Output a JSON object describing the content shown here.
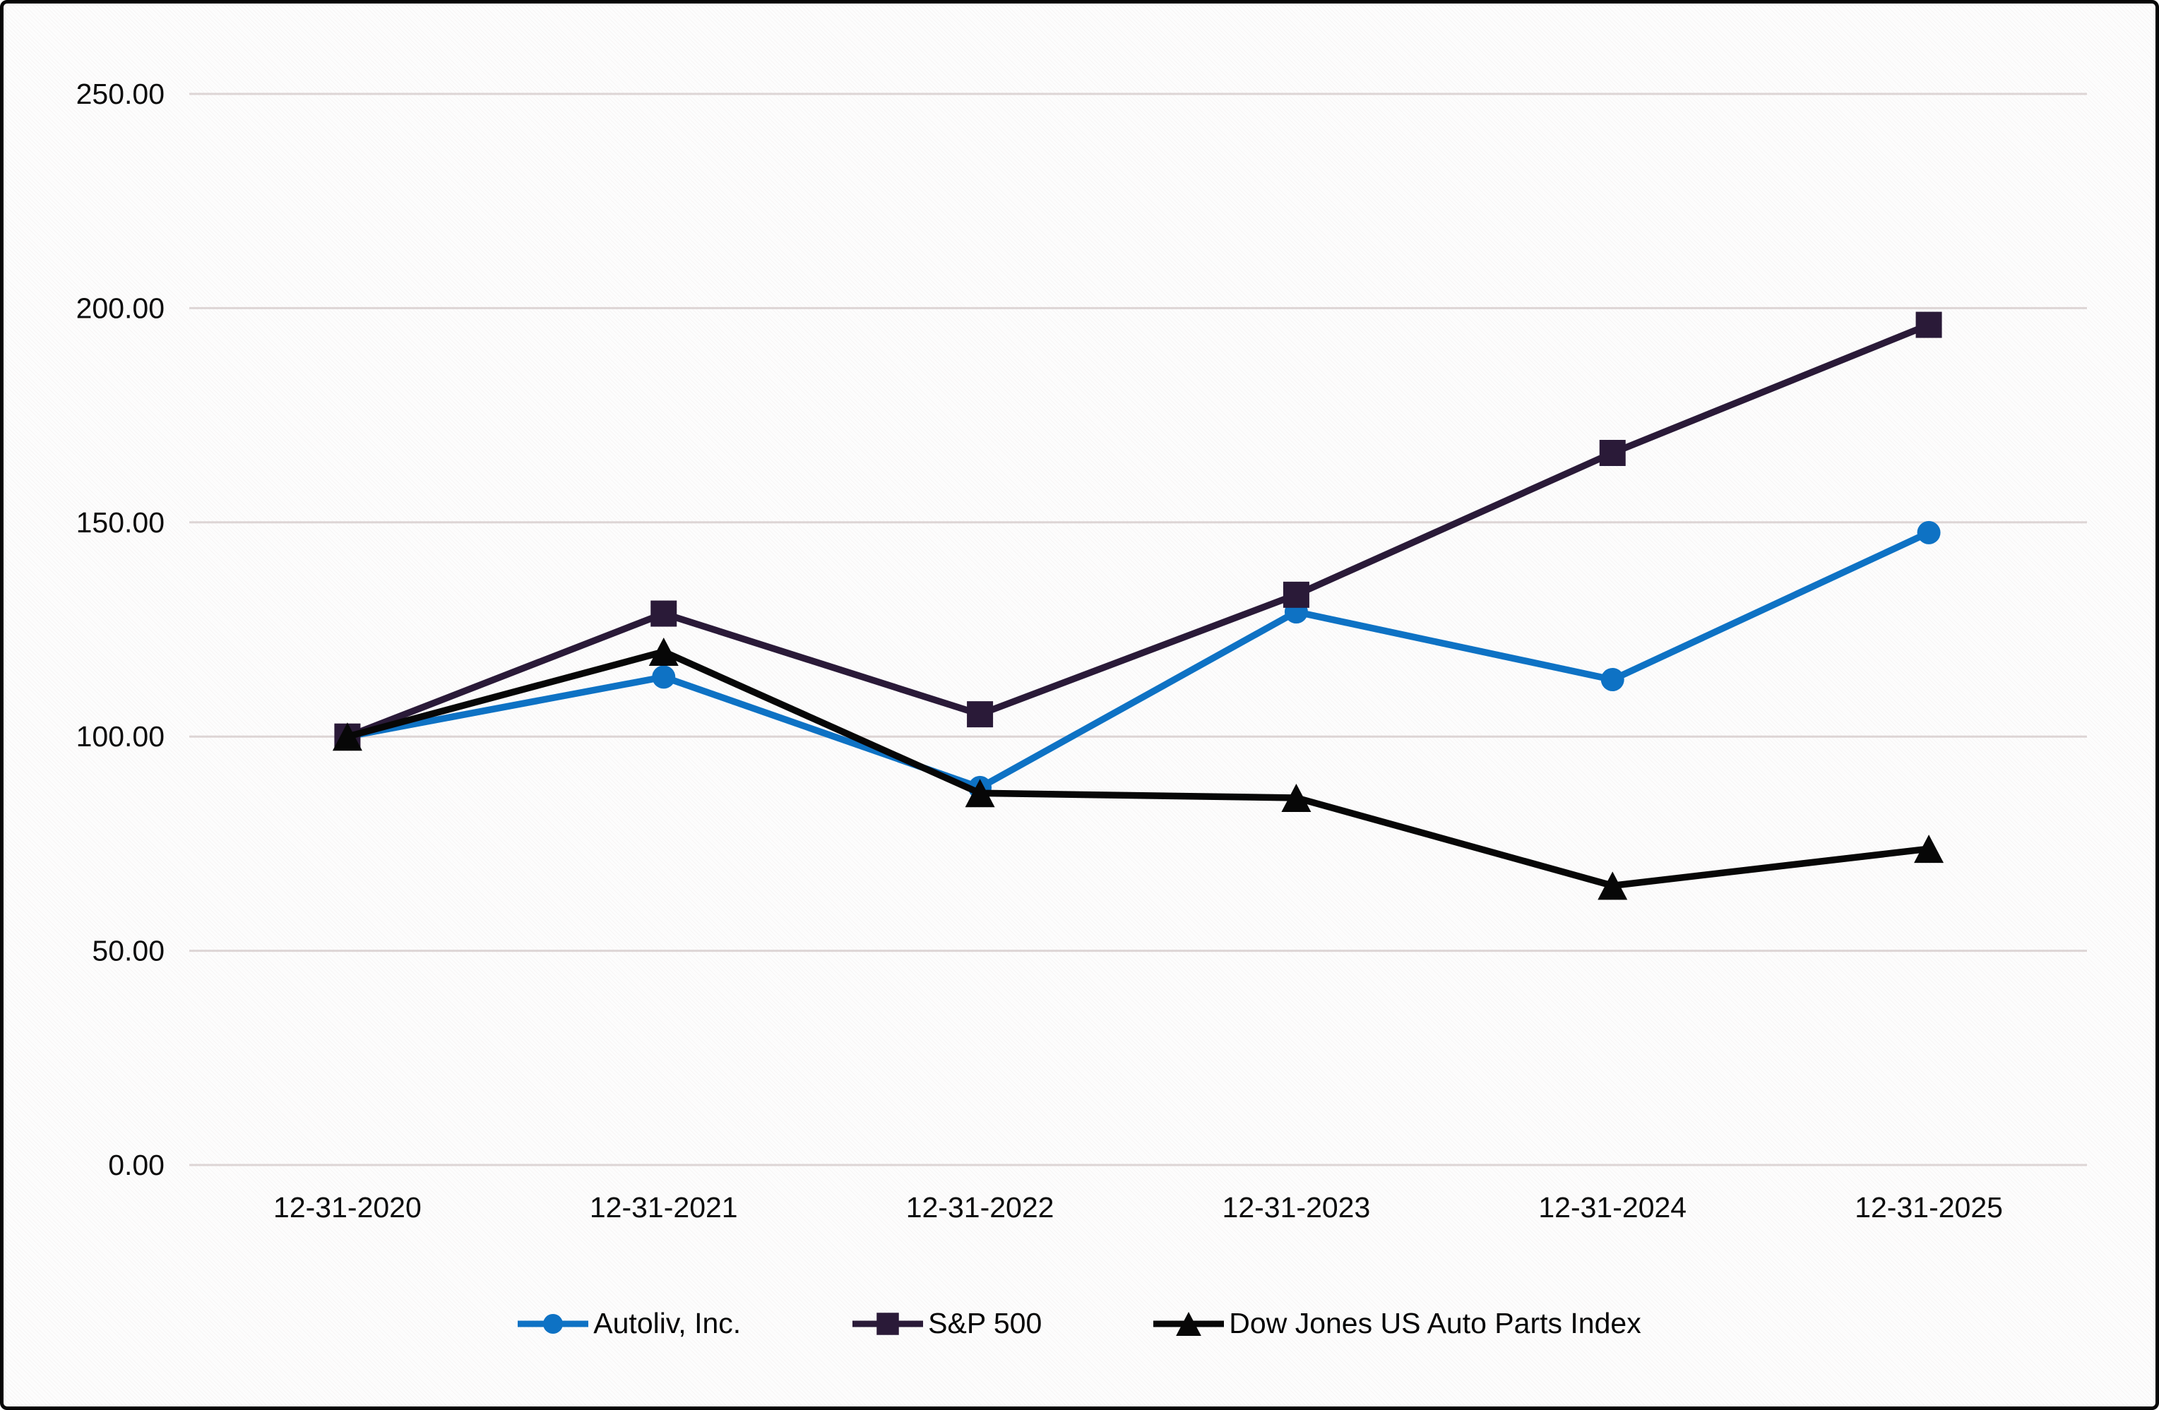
{
  "window": {
    "background_color": "#fdfdfd",
    "frame_border_color": "#060606"
  },
  "chart_data": {
    "type": "line",
    "title": "",
    "x_labels": [
      "12-31-2020",
      "12-31-2021",
      "12-31-2022",
      "12-31-2023",
      "12-31-2024",
      "12-31-2025"
    ],
    "y_ticks": [
      {
        "value": 0,
        "label": "0.00"
      },
      {
        "value": 50,
        "label": "50.00"
      },
      {
        "value": 100,
        "label": "100.00"
      },
      {
        "value": 150,
        "label": "150.00"
      },
      {
        "value": 200,
        "label": "200.00"
      },
      {
        "value": 250,
        "label": "250.00"
      }
    ],
    "ylim": [
      0,
      250
    ],
    "grid": "horizontal",
    "gridline_color": "#ddd5d5",
    "legend_position": "bottom-center",
    "series": [
      {
        "name": "Autoliv, Inc.",
        "marker": "circle",
        "color": "#0e72c4",
        "values": [
          100.0,
          113.9,
          88.1,
          129.1,
          113.3,
          147.6
        ]
      },
      {
        "name": "S&P 500",
        "marker": "square",
        "color": "#2a1a38",
        "values": [
          100.0,
          128.7,
          105.2,
          133.1,
          166.2,
          196.1
        ]
      },
      {
        "name": "Dow Jones US Auto Parts Index",
        "marker": "triangle",
        "color": "#070707",
        "values": [
          100.0,
          119.8,
          86.8,
          85.7,
          65.2,
          73.8
        ]
      }
    ]
  }
}
